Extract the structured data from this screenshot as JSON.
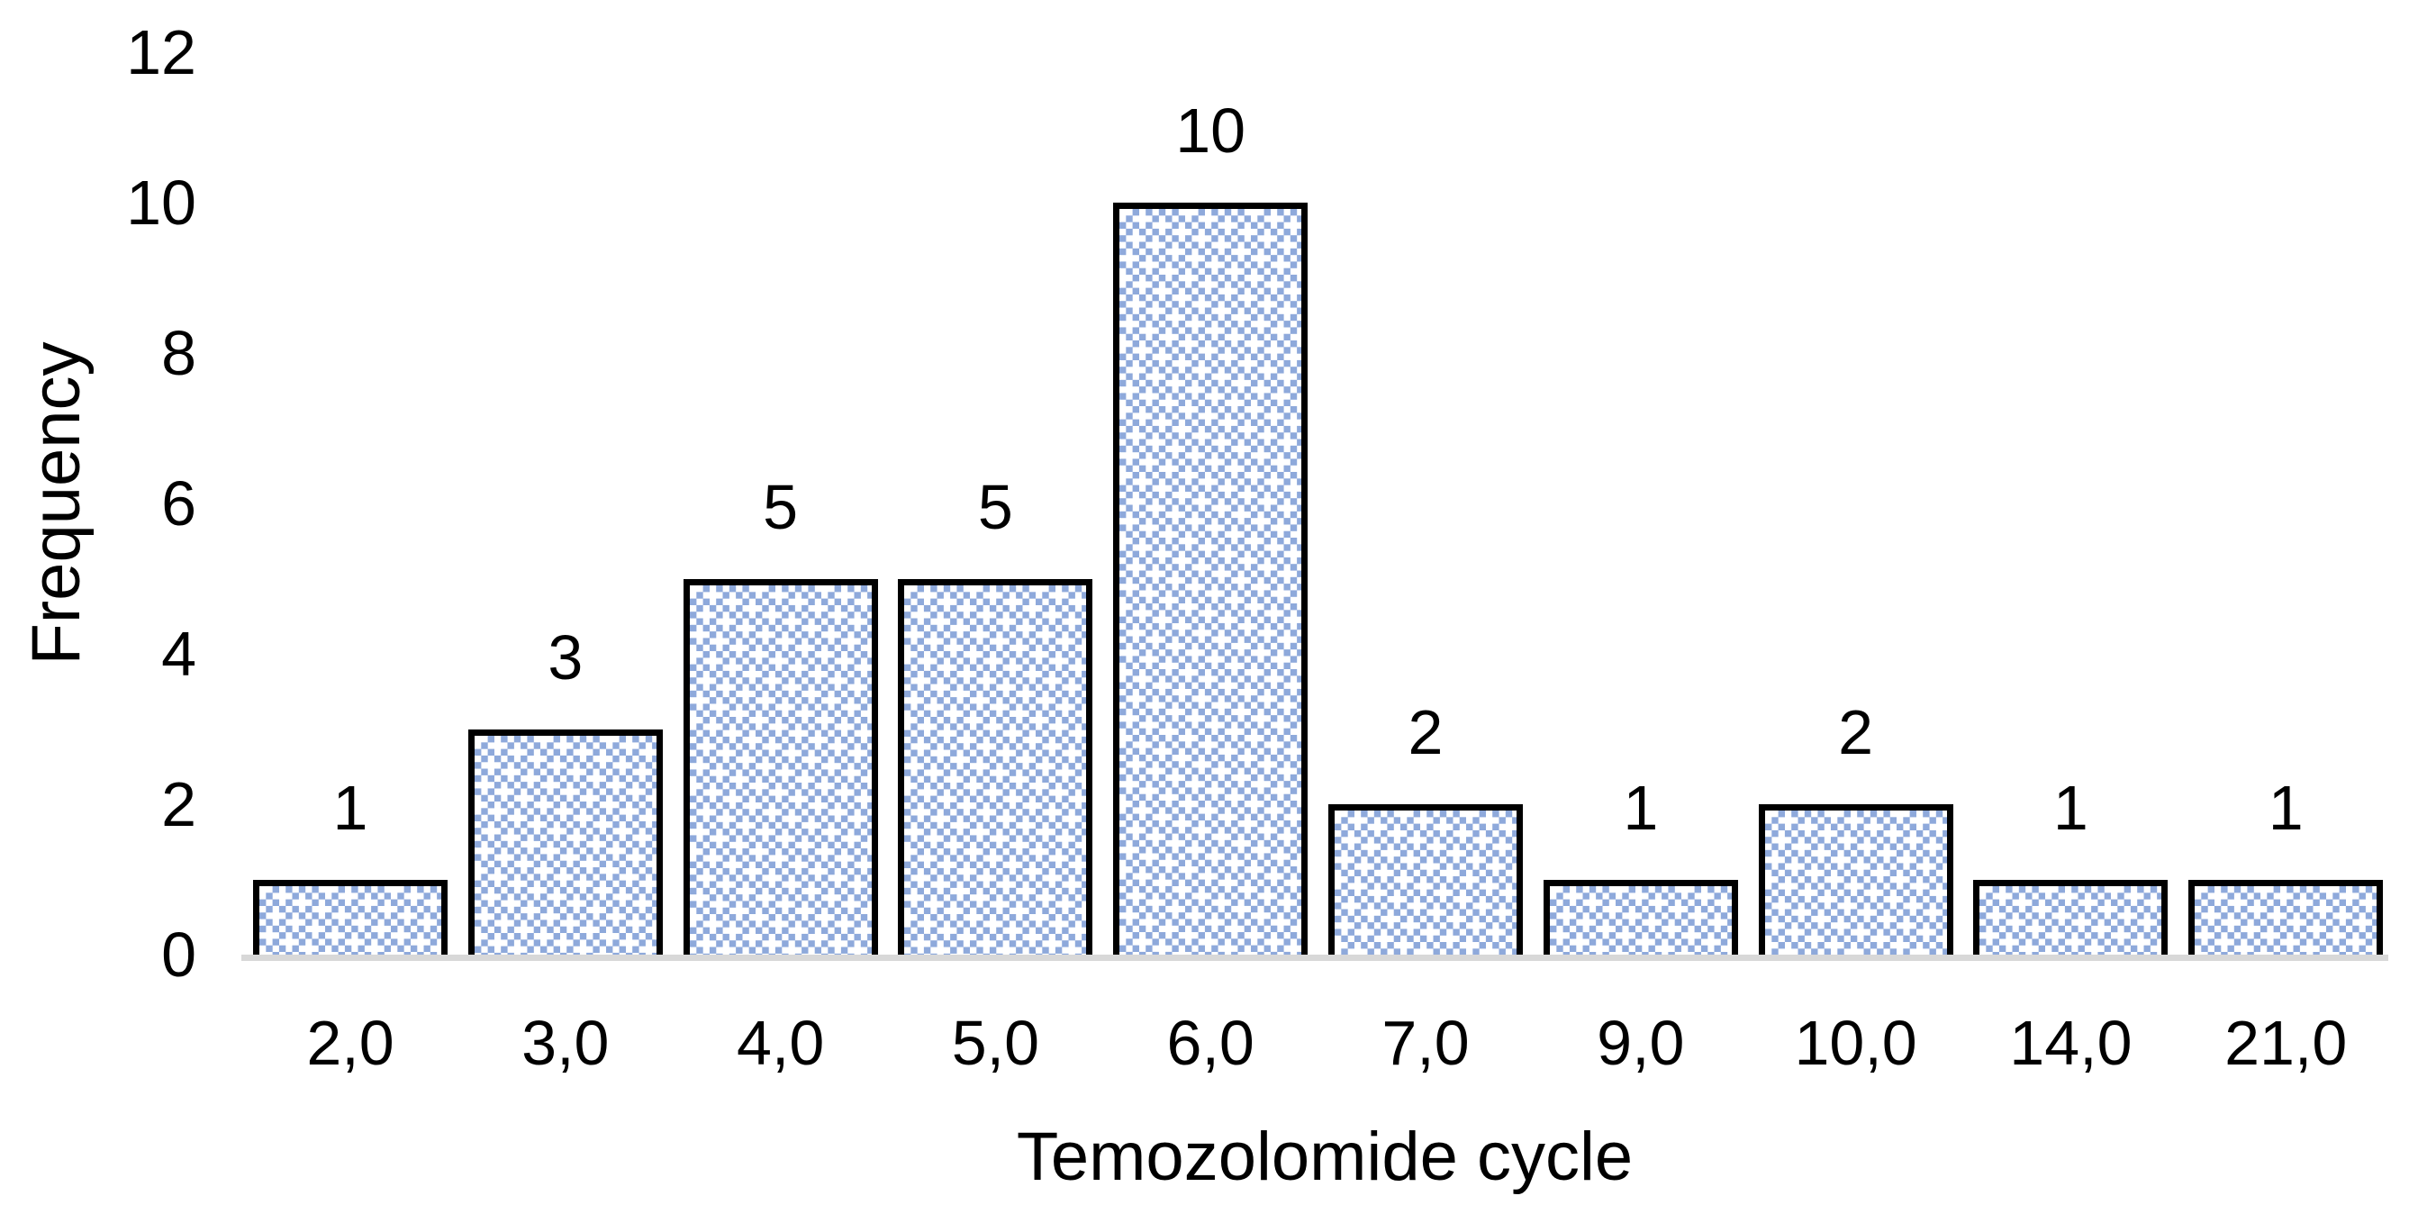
{
  "chart_data": {
    "type": "bar",
    "title": "",
    "xlabel": "Temozolomide cycle",
    "ylabel": "Frequency",
    "categories": [
      "2,0",
      "3,0",
      "4,0",
      "5,0",
      "6,0",
      "7,0",
      "9,0",
      "10,0",
      "14,0",
      "21,0"
    ],
    "values": [
      1,
      3,
      5,
      5,
      10,
      2,
      1,
      2,
      1,
      1
    ],
    "data_labels": [
      "1",
      "3",
      "5",
      "5",
      "10",
      "2",
      "1",
      "2",
      "1",
      "1"
    ],
    "yticks": [
      "0",
      "2",
      "4",
      "6",
      "8",
      "10",
      "12"
    ],
    "ytick_values": [
      0,
      2,
      4,
      6,
      8,
      10,
      12
    ],
    "ylim": [
      0,
      12
    ],
    "grid": false,
    "legend": false,
    "bar_fill_pattern": "40-percent-dither-checker",
    "colors": {
      "bar_pattern_blue": "#8EA9DB",
      "bar_background": "#FFFFFF",
      "bar_border": "#000000",
      "baseline": "#D8D8D8",
      "text": "#000000"
    }
  }
}
